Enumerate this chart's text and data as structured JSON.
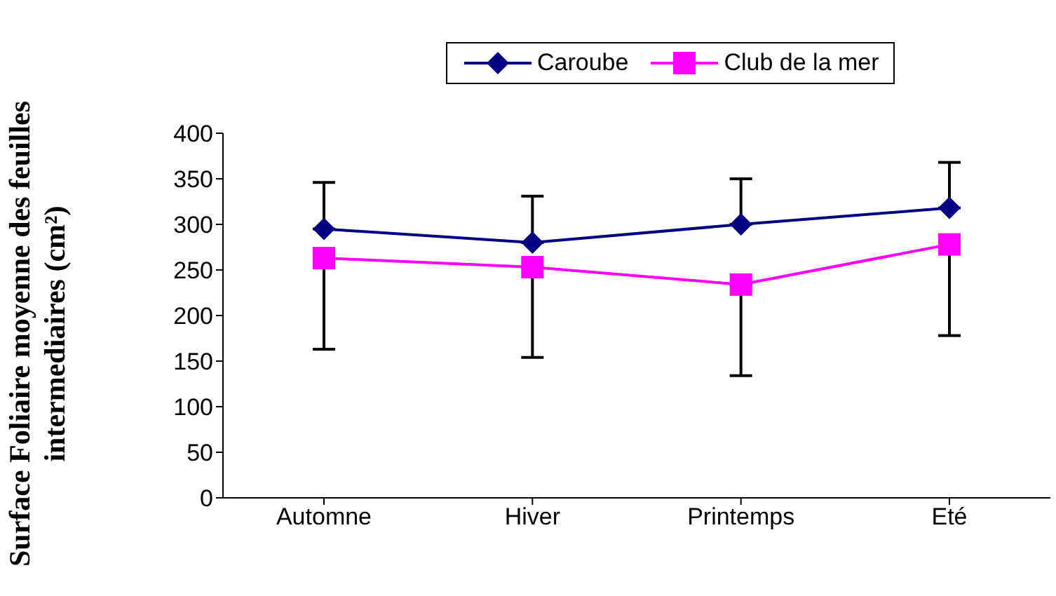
{
  "chart_data": {
    "type": "line",
    "ylabel": "Surface Foliaire moyenne des feuilles intermediaires (cm²)",
    "categories": [
      "Automne",
      "Hiver",
      "Printemps",
      "Eté"
    ],
    "series": [
      {
        "name": "Caroube",
        "color": "#000080",
        "marker": "diamond",
        "values": [
          295,
          280,
          300,
          318
        ],
        "errors": [
          [
            295,
            346
          ],
          [
            280,
            331
          ],
          [
            300,
            350
          ],
          [
            318,
            368
          ]
        ]
      },
      {
        "name": "Club de la mer",
        "color": "#ff00ff",
        "marker": "square",
        "values": [
          263,
          253,
          234,
          278
        ],
        "errors": [
          [
            163,
            263
          ],
          [
            154,
            253
          ],
          [
            134,
            234
          ],
          [
            178,
            278
          ]
        ]
      }
    ],
    "ylim": [
      0,
      400
    ],
    "yticks": [
      0,
      50,
      100,
      150,
      200,
      250,
      300,
      350,
      400
    ],
    "grid": false,
    "legend": "top"
  }
}
